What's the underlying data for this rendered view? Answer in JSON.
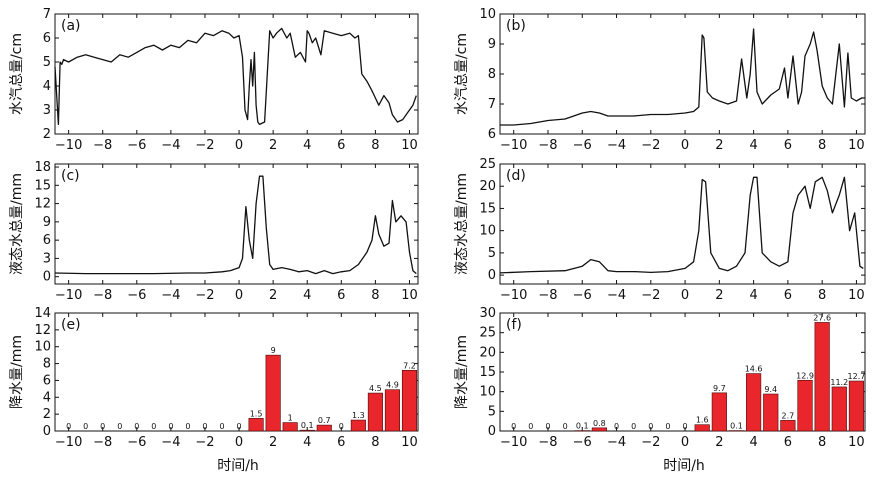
{
  "x_axis_title": "时间/h",
  "colors": {
    "line": "#111111",
    "bar": "#e8262b",
    "bar_stroke": "#4a0a0a"
  },
  "chart_data": [
    {
      "panel": "(a)",
      "type": "line",
      "ylabel": "水汽总量/cm",
      "xlim": [
        -10.8,
        10.5
      ],
      "ylim": [
        2,
        7
      ],
      "xticks": [
        -10,
        -8,
        -6,
        -4,
        -2,
        0,
        2,
        4,
        6,
        8,
        10
      ],
      "yticks": [
        2,
        3,
        4,
        5,
        6,
        7
      ],
      "series": [
        {
          "x": [
            -10.8,
            -10.6,
            -10.5,
            -10.4,
            -10.3,
            -10.0,
            -9.5,
            -9.0,
            -8.5,
            -8.0,
            -7.5,
            -7.0,
            -6.5,
            -6.0,
            -5.5,
            -5.0,
            -4.5,
            -4.0,
            -3.5,
            -3.0,
            -2.5,
            -2.0,
            -1.5,
            -1.0,
            -0.6,
            -0.3,
            0.0,
            0.2,
            0.35,
            0.5,
            0.6,
            0.7,
            0.8,
            0.9,
            1.0,
            1.1,
            1.2,
            1.5,
            1.8,
            2.0,
            2.2,
            2.5,
            2.8,
            3.0,
            3.3,
            3.6,
            3.9,
            4.0,
            4.1,
            4.3,
            4.5,
            4.8,
            5.0,
            5.5,
            6.0,
            6.5,
            6.8,
            7.0,
            7.2,
            7.5,
            7.8,
            8.0,
            8.2,
            8.5,
            8.8,
            9.0,
            9.3,
            9.6,
            9.9,
            10.2,
            10.4
          ],
          "y": [
            4.8,
            2.4,
            5.0,
            4.9,
            5.1,
            5.0,
            5.2,
            5.3,
            5.2,
            5.1,
            5.0,
            5.3,
            5.2,
            5.4,
            5.6,
            5.7,
            5.5,
            5.7,
            5.6,
            5.9,
            5.8,
            6.2,
            6.1,
            6.3,
            6.2,
            6.0,
            6.1,
            5.2,
            3.0,
            2.6,
            4.0,
            5.1,
            4.0,
            5.4,
            3.2,
            2.5,
            2.4,
            2.5,
            6.3,
            6.0,
            6.2,
            6.4,
            6.0,
            6.2,
            5.2,
            5.4,
            5.0,
            6.3,
            6.2,
            5.8,
            6.0,
            5.3,
            6.3,
            6.2,
            6.1,
            6.2,
            6.0,
            6.1,
            4.5,
            4.2,
            3.8,
            3.5,
            3.2,
            3.6,
            3.3,
            2.8,
            2.5,
            2.6,
            2.9,
            3.2,
            3.6
          ]
        }
      ]
    },
    {
      "panel": "(b)",
      "type": "line",
      "ylabel": "水汽总量/cm",
      "xlim": [
        -10.8,
        10.5
      ],
      "ylim": [
        6,
        10
      ],
      "xticks": [
        -10,
        -8,
        -6,
        -4,
        -2,
        0,
        2,
        4,
        6,
        8,
        10
      ],
      "yticks": [
        6,
        7,
        8,
        9,
        10
      ],
      "series": [
        {
          "x": [
            -10.8,
            -10.0,
            -9.0,
            -8.0,
            -7.0,
            -6.0,
            -5.5,
            -5.0,
            -4.5,
            -4.0,
            -3.0,
            -2.0,
            -1.0,
            0.0,
            0.5,
            0.8,
            1.0,
            1.1,
            1.3,
            1.6,
            2.0,
            2.5,
            3.0,
            3.3,
            3.6,
            3.8,
            4.0,
            4.2,
            4.5,
            5.0,
            5.5,
            5.8,
            6.0,
            6.3,
            6.6,
            6.8,
            7.0,
            7.3,
            7.5,
            7.7,
            8.0,
            8.3,
            8.6,
            9.0,
            9.3,
            9.5,
            9.7,
            10.0,
            10.3,
            10.5
          ],
          "y": [
            6.3,
            6.3,
            6.35,
            6.45,
            6.5,
            6.7,
            6.75,
            6.7,
            6.6,
            6.6,
            6.6,
            6.65,
            6.65,
            6.7,
            6.75,
            6.9,
            9.3,
            9.2,
            7.4,
            7.2,
            7.1,
            7.0,
            7.1,
            8.5,
            7.2,
            8.0,
            9.5,
            7.4,
            7.0,
            7.3,
            7.5,
            8.2,
            7.2,
            8.6,
            7.0,
            7.4,
            8.6,
            9.0,
            9.4,
            8.8,
            7.6,
            7.2,
            7.0,
            9.0,
            6.9,
            8.7,
            7.2,
            7.1,
            7.2,
            7.2
          ]
        }
      ]
    },
    {
      "panel": "(c)",
      "type": "line",
      "ylabel": "液态水总量/mm",
      "xlim": [
        -10.8,
        10.5
      ],
      "ylim": [
        -1.2,
        18.5
      ],
      "xticks": [
        -10,
        -8,
        -6,
        -4,
        -2,
        0,
        2,
        4,
        6,
        8,
        10
      ],
      "yticks": [
        0,
        3,
        6,
        9,
        12,
        15,
        18
      ],
      "series": [
        {
          "x": [
            -10.8,
            -9.0,
            -7.0,
            -5.0,
            -3.0,
            -2.0,
            -1.0,
            -0.5,
            0.0,
            0.2,
            0.4,
            0.6,
            0.8,
            1.0,
            1.2,
            1.4,
            1.6,
            1.8,
            2.0,
            2.5,
            3.0,
            3.5,
            4.0,
            4.5,
            5.0,
            5.5,
            6.0,
            6.5,
            7.0,
            7.5,
            7.8,
            8.0,
            8.2,
            8.5,
            8.8,
            9.0,
            9.2,
            9.5,
            9.8,
            10.0,
            10.2,
            10.4
          ],
          "y": [
            0.6,
            0.5,
            0.5,
            0.5,
            0.6,
            0.6,
            0.8,
            1.0,
            1.5,
            3.0,
            11.5,
            6.0,
            3.0,
            12.0,
            16.5,
            16.5,
            8.0,
            2.0,
            1.2,
            1.5,
            1.2,
            0.8,
            1.0,
            0.5,
            1.0,
            0.5,
            0.8,
            1.0,
            2.0,
            4.0,
            6.0,
            10.0,
            7.0,
            5.0,
            5.5,
            12.5,
            9.0,
            10.0,
            9.0,
            4.0,
            1.0,
            0.5
          ]
        }
      ]
    },
    {
      "panel": "(d)",
      "type": "line",
      "ylabel": "液态水总量/mm",
      "xlim": [
        -10.8,
        10.5
      ],
      "ylim": [
        -2,
        25
      ],
      "xticks": [
        -10,
        -8,
        -6,
        -4,
        -2,
        0,
        2,
        4,
        6,
        8,
        10
      ],
      "yticks": [
        0,
        5,
        10,
        15,
        20,
        25
      ],
      "series": [
        {
          "x": [
            -10.8,
            -9.0,
            -7.0,
            -6.0,
            -5.5,
            -5.0,
            -4.5,
            -4.0,
            -3.0,
            -2.0,
            -1.0,
            0.0,
            0.5,
            0.8,
            1.0,
            1.2,
            1.5,
            2.0,
            2.5,
            3.0,
            3.5,
            3.8,
            4.0,
            4.2,
            4.5,
            5.0,
            5.5,
            6.0,
            6.3,
            6.6,
            7.0,
            7.3,
            7.6,
            8.0,
            8.3,
            8.6,
            9.0,
            9.3,
            9.6,
            9.9,
            10.2,
            10.4
          ],
          "y": [
            0.5,
            0.8,
            1.0,
            2.0,
            3.5,
            3.0,
            1.0,
            0.8,
            0.8,
            0.6,
            0.8,
            1.5,
            3.0,
            10.0,
            21.5,
            21.0,
            5.0,
            1.5,
            1.0,
            2.0,
            5.0,
            18.0,
            22.0,
            22.0,
            5.0,
            3.0,
            2.0,
            3.0,
            14.0,
            18.0,
            20.0,
            15.0,
            21.0,
            22.0,
            19.0,
            14.0,
            18.0,
            22.0,
            10.0,
            14.0,
            2.0,
            1.5
          ]
        }
      ]
    },
    {
      "panel": "(e)",
      "type": "bar",
      "ylabel": "降水量/mm",
      "xlim": [
        -10.8,
        10.5
      ],
      "ylim": [
        0,
        14
      ],
      "xticks": [
        -10,
        -8,
        -6,
        -4,
        -2,
        0,
        2,
        4,
        6,
        8,
        10
      ],
      "yticks": [
        0,
        2,
        4,
        6,
        8,
        10,
        12,
        14
      ],
      "x": [
        -10,
        -9,
        -8,
        -7,
        -6,
        -5,
        -4,
        -3,
        -2,
        -1,
        0,
        1,
        2,
        3,
        4,
        5,
        6,
        7,
        8,
        9,
        10
      ],
      "values": [
        0,
        0,
        0,
        0,
        0,
        0,
        0,
        0,
        0,
        0,
        0,
        1.5,
        9,
        1,
        0.1,
        0.7,
        0,
        1.3,
        4.5,
        4.9,
        7.2
      ],
      "labels": [
        "0",
        "0",
        "0",
        "0",
        "0",
        "0",
        "0",
        "0",
        "0",
        "0",
        "0",
        "1.5",
        "9",
        "1",
        "0.1",
        "0.7",
        "0",
        "1.3",
        "4.5",
        "4.9",
        "7.2"
      ]
    },
    {
      "panel": "(f)",
      "type": "bar",
      "ylabel": "降水量/mm",
      "xlim": [
        -10.8,
        10.5
      ],
      "ylim": [
        0,
        30
      ],
      "xticks": [
        -10,
        -8,
        -6,
        -4,
        -2,
        0,
        2,
        4,
        6,
        8,
        10
      ],
      "yticks": [
        0,
        5,
        10,
        15,
        20,
        25,
        30
      ],
      "x": [
        -10,
        -9,
        -8,
        -7,
        -6,
        -5,
        -4,
        -3,
        -2,
        -1,
        0,
        1,
        2,
        3,
        4,
        5,
        6,
        7,
        8,
        9,
        10
      ],
      "values": [
        0,
        0,
        0,
        0,
        0.1,
        0.8,
        0,
        0,
        0,
        0,
        0,
        1.6,
        9.7,
        0.1,
        14.6,
        9.4,
        2.7,
        12.9,
        27.6,
        11.2,
        12.7
      ],
      "labels": [
        "0",
        "0",
        "0",
        "0",
        "0.1",
        "0.8",
        "0",
        "0",
        "0",
        "0",
        "0",
        "1.6",
        "9.7",
        "0.1",
        "14.6",
        "9.4",
        "2.7",
        "12.9",
        "27.6",
        "11.2",
        "12.7"
      ]
    }
  ]
}
